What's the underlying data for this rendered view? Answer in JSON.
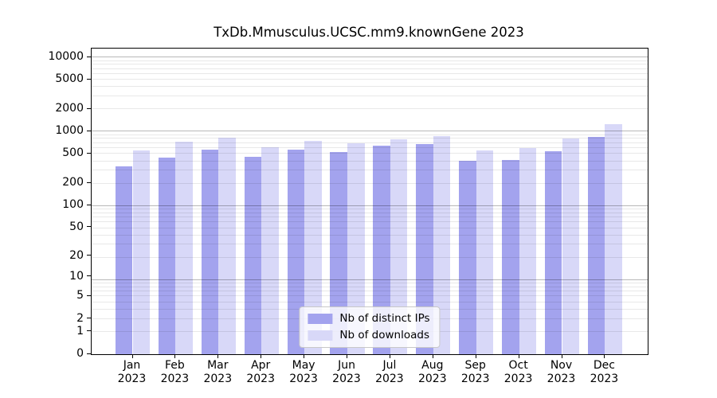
{
  "title": "TxDb.Mmusculus.UCSC.mm9.knownGene 2023",
  "chart_data": {
    "type": "bar",
    "title": "TxDb.Mmusculus.UCSC.mm9.knownGene 2023",
    "categories": [
      "Jan",
      "Feb",
      "Mar",
      "Apr",
      "May",
      "Jun",
      "Jul",
      "Aug",
      "Sep",
      "Oct",
      "Nov",
      "Dec"
    ],
    "x_tick_year": "2023",
    "series": [
      {
        "name": "Nb of distinct IPs",
        "color": "#a3a3ee",
        "values": [
          340,
          445,
          565,
          460,
          565,
          530,
          640,
          680,
          400,
          410,
          545,
          855
        ]
      },
      {
        "name": "Nb of downloads",
        "color": "#d8d8f8",
        "values": [
          560,
          725,
          830,
          610,
          755,
          695,
          790,
          870,
          560,
          600,
          800,
          1260
        ]
      }
    ],
    "y_scale": "log10(1+x)",
    "y_ticks": [
      0,
      1,
      2,
      5,
      10,
      20,
      50,
      100,
      200,
      500,
      1000,
      2000,
      5000,
      10000
    ],
    "ylim": [
      0,
      13200
    ],
    "grid": true,
    "legend_position": "lower center"
  }
}
